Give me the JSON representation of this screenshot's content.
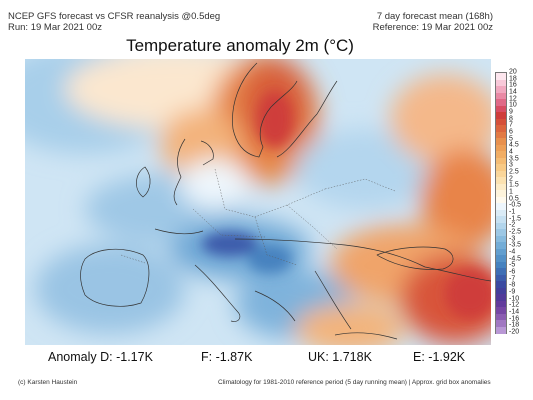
{
  "header": {
    "left_line1": "NCEP GFS forecast vs CFSR reanalysis @0.5deg",
    "left_line2": "Run: 19 Mar 2021 00z",
    "right_line1": "7 day forecast mean (168h)",
    "right_line2": "Reference: 19 Mar 2021 00z"
  },
  "title": "Temperature anomaly 2m (°C)",
  "colorbar": {
    "labels": [
      "20",
      "18",
      "16",
      "14",
      "12",
      "10",
      "9",
      "8",
      "7",
      "6",
      "5",
      "4.5",
      "4",
      "3.5",
      "3",
      "2.5",
      "2",
      "1.5",
      "1",
      "0.5",
      "-0.5",
      "-1",
      "-1.5",
      "-2",
      "-2.5",
      "-3",
      "-3.5",
      "-4",
      "-4.5",
      "-5",
      "-6",
      "-7",
      "-8",
      "-9",
      "-10",
      "-12",
      "-14",
      "-16",
      "-18",
      "-20"
    ],
    "colors": [
      "#fde6ee",
      "#f8c9d9",
      "#f1a9c0",
      "#e98aa5",
      "#e06a88",
      "#d84d63",
      "#cf3d3b",
      "#d5503a",
      "#dc653e",
      "#e27a44",
      "#e8904d",
      "#ed9f57",
      "#f1ad64",
      "#f5bc74",
      "#f8ca86",
      "#fad69a",
      "#fce2b0",
      "#fdecc7",
      "#fef4dc",
      "#fffaee",
      "#eef6fc",
      "#dbecf7",
      "#c7e1f2",
      "#b2d5ec",
      "#9dc8e5",
      "#88bbde",
      "#74add7",
      "#639fcf",
      "#5491c7",
      "#4682bf",
      "#3f6fb5",
      "#3c5cab",
      "#3b4aa1",
      "#433f9b",
      "#513a99",
      "#623c9c",
      "#7647a4",
      "#8b5db1",
      "#a178c2",
      "#b998d5"
    ]
  },
  "stats": {
    "anomaly_d": "Anomaly D: -1.17K",
    "f": "F: -1.87K",
    "uk": "UK: 1.718K",
    "e": "E: -1.92K"
  },
  "footer": {
    "left": "(c) Karsten Haustein",
    "right": "Climatology for 1981-2010 reference period (5 day running mean) | Approx. grid box anomalies"
  }
}
